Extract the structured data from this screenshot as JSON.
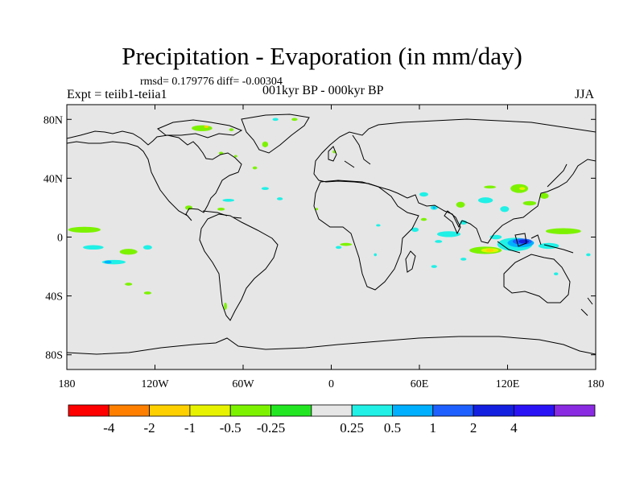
{
  "chart_data": {
    "type": "heatmap",
    "title": "Precipitation - Evaporation (in mm/day)",
    "stats": "rmsd= 0.179776  diff= -0.00304",
    "experiment": "Expt = teiib1-teiia1",
    "period": "001kyr BP - 000kyr BP",
    "season": "JJA",
    "x_ticks": [
      {
        "value": -180,
        "label": "180"
      },
      {
        "value": -120,
        "label": "120W"
      },
      {
        "value": -60,
        "label": "60W"
      },
      {
        "value": 0,
        "label": "0"
      },
      {
        "value": 60,
        "label": "60E"
      },
      {
        "value": 120,
        "label": "120E"
      },
      {
        "value": 180,
        "label": "180"
      }
    ],
    "y_ticks": [
      {
        "value": 80,
        "label": "80N"
      },
      {
        "value": 40,
        "label": "40N"
      },
      {
        "value": 0,
        "label": "0"
      },
      {
        "value": -40,
        "label": "40S"
      },
      {
        "value": -80,
        "label": "80S"
      }
    ],
    "xlim": [
      -180,
      180
    ],
    "ylim": [
      -90,
      90
    ],
    "colorbar": {
      "colors": [
        "#ff0000",
        "#ff8000",
        "#ffd000",
        "#e6f200",
        "#7cf200",
        "#22e622",
        "#e6e6e6",
        "#20f0e6",
        "#00b0ff",
        "#1e60ff",
        "#1420e0",
        "#2a14f5",
        "#8a2be2"
      ],
      "labels": [
        "-4",
        "-2",
        "-1",
        "-0.5",
        "-0.25",
        "0.25",
        "0.5",
        "1",
        "2",
        "4"
      ]
    },
    "background_color": "#e6e6e6",
    "features": [
      {
        "level": "-0.25",
        "lon": -168,
        "lat": 5,
        "w": 22,
        "h": 4
      },
      {
        "level": "-0.25",
        "lon": -138,
        "lat": -10,
        "w": 12,
        "h": 4
      },
      {
        "level": "0.25",
        "lon": -162,
        "lat": -7,
        "w": 14,
        "h": 3
      },
      {
        "level": "0.25",
        "lon": -148,
        "lat": -17,
        "w": 16,
        "h": 3
      },
      {
        "level": "0.5",
        "lon": -152,
        "lat": -17,
        "w": 5,
        "h": 2
      },
      {
        "level": "0.25",
        "lon": -125,
        "lat": -7,
        "w": 6,
        "h": 3
      },
      {
        "level": "-0.25",
        "lon": -138,
        "lat": -32,
        "w": 5,
        "h": 2
      },
      {
        "level": "-0.25",
        "lon": -125,
        "lat": -38,
        "w": 5,
        "h": 2
      },
      {
        "level": "-0.25",
        "lon": -97,
        "lat": 20,
        "w": 5,
        "h": 3
      },
      {
        "level": "-0.25",
        "lon": -75,
        "lat": 19,
        "w": 5,
        "h": 2
      },
      {
        "level": "0.25",
        "lon": -70,
        "lat": 25,
        "w": 8,
        "h": 2
      },
      {
        "level": "-0.25",
        "lon": -72,
        "lat": -47,
        "w": 2,
        "h": 5
      },
      {
        "level": "-0.25",
        "lon": -52,
        "lat": 47,
        "w": 3,
        "h": 2
      },
      {
        "level": "0.25",
        "lon": -45,
        "lat": 33,
        "w": 5,
        "h": 2
      },
      {
        "level": "0.25",
        "lon": -35,
        "lat": 26,
        "w": 4,
        "h": 2
      },
      {
        "level": "-0.25",
        "lon": -10,
        "lat": 19,
        "w": 2,
        "h": 1.5
      },
      {
        "level": "-0.25",
        "lon": -88,
        "lat": 74,
        "w": 14,
        "h": 4
      },
      {
        "level": "-1",
        "lon": -85,
        "lat": 75,
        "w": 3,
        "h": 1.5
      },
      {
        "level": "-0.25",
        "lon": -68,
        "lat": 73,
        "w": 3,
        "h": 2
      },
      {
        "level": "-0.25",
        "lon": -75,
        "lat": 57,
        "w": 3,
        "h": 2
      },
      {
        "level": "-0.25",
        "lon": -65,
        "lat": 55,
        "w": 2,
        "h": 1.5
      },
      {
        "level": "-0.25",
        "lon": -45,
        "lat": 63,
        "w": 4,
        "h": 4
      },
      {
        "level": "0.25",
        "lon": -38,
        "lat": 80,
        "w": 4,
        "h": 2
      },
      {
        "level": "-0.25",
        "lon": -25,
        "lat": 80,
        "w": 4,
        "h": 2
      },
      {
        "level": "-0.25",
        "lon": 2,
        "lat": 58,
        "w": 2,
        "h": 2
      },
      {
        "level": "-0.25",
        "lon": 10,
        "lat": -5,
        "w": 8,
        "h": 2
      },
      {
        "level": "0.25",
        "lon": 5,
        "lat": -7,
        "w": 4,
        "h": 2
      },
      {
        "level": "0.25",
        "lon": 32,
        "lat": 8,
        "w": 3,
        "h": 1.5
      },
      {
        "level": "0.25",
        "lon": 30,
        "lat": -12,
        "w": 2,
        "h": 2
      },
      {
        "level": "0.25",
        "lon": 57,
        "lat": 5,
        "w": 5,
        "h": 3
      },
      {
        "level": "-0.25",
        "lon": 63,
        "lat": 12,
        "w": 4,
        "h": 2
      },
      {
        "level": "0.25",
        "lon": 73,
        "lat": -3,
        "w": 5,
        "h": 2
      },
      {
        "level": "0.25",
        "lon": 70,
        "lat": -20,
        "w": 4,
        "h": 2
      },
      {
        "level": "0.25",
        "lon": 63,
        "lat": 29,
        "w": 6,
        "h": 3
      },
      {
        "level": "0.25",
        "lon": 70,
        "lat": 20,
        "w": 5,
        "h": 3
      },
      {
        "level": "0.5",
        "lon": 70,
        "lat": 20,
        "w": 2,
        "h": 1.5
      },
      {
        "level": "-0.25",
        "lon": 88,
        "lat": 22,
        "w": 6,
        "h": 4
      },
      {
        "level": "0.25",
        "lon": 90,
        "lat": 10,
        "w": 5,
        "h": 3
      },
      {
        "level": "0.25",
        "lon": 80,
        "lat": 2,
        "w": 16,
        "h": 4
      },
      {
        "level": "0.25",
        "lon": 105,
        "lat": 25,
        "w": 10,
        "h": 4
      },
      {
        "level": "-0.25",
        "lon": 108,
        "lat": 34,
        "w": 8,
        "h": 2
      },
      {
        "level": "-0.25",
        "lon": 128,
        "lat": 33,
        "w": 12,
        "h": 6
      },
      {
        "level": "-0.5",
        "lon": 130,
        "lat": 33,
        "w": 4,
        "h": 2
      },
      {
        "level": "0.25",
        "lon": 118,
        "lat": 19,
        "w": 6,
        "h": 4
      },
      {
        "level": "-0.25",
        "lon": 135,
        "lat": 23,
        "w": 9,
        "h": 3
      },
      {
        "level": "-0.25",
        "lon": 145,
        "lat": 28,
        "w": 6,
        "h": 4
      },
      {
        "level": "-0.25",
        "lon": 158,
        "lat": 4,
        "w": 24,
        "h": 4
      },
      {
        "level": "0.25",
        "lon": 112,
        "lat": 0,
        "w": 8,
        "h": 3
      },
      {
        "level": "-0.25",
        "lon": 105,
        "lat": -9,
        "w": 22,
        "h": 5
      },
      {
        "level": "-0.5",
        "lon": 108,
        "lat": -9,
        "w": 12,
        "h": 3
      },
      {
        "level": "-1",
        "lon": 108,
        "lat": -9,
        "w": 5,
        "h": 2
      },
      {
        "level": "0.25",
        "lon": 125,
        "lat": -5,
        "w": 24,
        "h": 9
      },
      {
        "level": "0.5",
        "lon": 129,
        "lat": -4,
        "w": 18,
        "h": 6
      },
      {
        "level": "1",
        "lon": 130,
        "lat": -3,
        "w": 13,
        "h": 4
      },
      {
        "level": "2",
        "lon": 131,
        "lat": -3,
        "w": 7,
        "h": 2.5
      },
      {
        "level": "0.25",
        "lon": 148,
        "lat": -6,
        "w": 14,
        "h": 4
      },
      {
        "level": "0.25",
        "lon": 90,
        "lat": -15,
        "w": 4,
        "h": 2
      },
      {
        "level": "0.25",
        "lon": 153,
        "lat": -25,
        "w": 3,
        "h": 2
      },
      {
        "level": "0.25",
        "lon": 175,
        "lat": -12,
        "w": 3,
        "h": 2
      }
    ]
  }
}
